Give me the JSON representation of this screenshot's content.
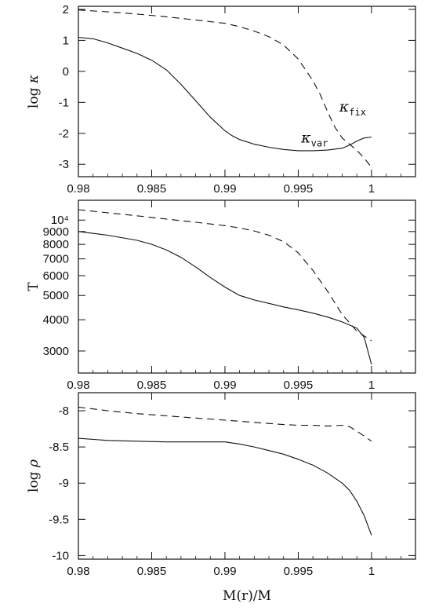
{
  "chart_data": [
    {
      "type": "line",
      "ylabel_symbol": "log ",
      "ylabel_var": "κ",
      "xlim": [
        0.98,
        1.003
      ],
      "ylim": [
        -3.4,
        2.1
      ],
      "x_ticks": [
        "0.98",
        "0.985",
        "0.99",
        "0.995",
        "1"
      ],
      "y_ticks": [
        "2",
        "1",
        "0",
        "-1",
        "-2",
        "-3"
      ],
      "y_tick_values": [
        2,
        1,
        0,
        -1,
        -2,
        -3
      ],
      "annotations": [
        {
          "symbol": "κ",
          "sub": "fix",
          "x": 0.9978,
          "y": -1.3
        },
        {
          "symbol": "κ",
          "sub": "var",
          "x": 0.9952,
          "y": -2.3
        }
      ],
      "series": [
        {
          "style": "dashed",
          "x": [
            0.98,
            0.982,
            0.984,
            0.986,
            0.988,
            0.99,
            0.991,
            0.992,
            0.993,
            0.994,
            0.995,
            0.996,
            0.9965,
            0.997,
            0.9975,
            0.998,
            0.9985,
            0.999,
            0.9995,
            1.0
          ],
          "y": [
            1.98,
            1.92,
            1.85,
            1.76,
            1.66,
            1.55,
            1.44,
            1.3,
            1.12,
            0.85,
            0.4,
            -0.3,
            -0.75,
            -1.3,
            -1.8,
            -2.15,
            -2.35,
            -2.55,
            -2.8,
            -3.1
          ]
        },
        {
          "style": "solid",
          "x": [
            0.98,
            0.981,
            0.982,
            0.983,
            0.984,
            0.985,
            0.986,
            0.987,
            0.988,
            0.989,
            0.99,
            0.9905,
            0.991,
            0.992,
            0.993,
            0.994,
            0.995,
            0.996,
            0.997,
            0.998,
            0.9985,
            0.999,
            0.9995,
            1.0
          ],
          "y": [
            1.1,
            1.05,
            0.92,
            0.75,
            0.58,
            0.36,
            0.05,
            -0.42,
            -0.95,
            -1.48,
            -1.92,
            -2.08,
            -2.2,
            -2.35,
            -2.45,
            -2.52,
            -2.56,
            -2.56,
            -2.54,
            -2.48,
            -2.38,
            -2.25,
            -2.15,
            -2.12
          ]
        }
      ]
    },
    {
      "type": "line",
      "ylabel": "T",
      "ylog": true,
      "xlim": [
        0.98,
        1.003
      ],
      "ylim": [
        2450,
        12000
      ],
      "x_ticks": [
        "0.98",
        "0.985",
        "0.99",
        "0.995",
        "1"
      ],
      "y_ticks": [
        "10⁴",
        "9000",
        "8000",
        "7000",
        "6000",
        "5000",
        "4000",
        "3000"
      ],
      "y_tick_values": [
        10000,
        9000,
        8000,
        7000,
        6000,
        5000,
        4000,
        3000
      ],
      "series": [
        {
          "style": "dashed",
          "x": [
            0.98,
            0.982,
            0.984,
            0.986,
            0.988,
            0.99,
            0.991,
            0.992,
            0.993,
            0.994,
            0.995,
            0.996,
            0.997,
            0.998,
            0.999,
            1.0
          ],
          "y": [
            11000,
            10700,
            10400,
            10100,
            9800,
            9500,
            9300,
            9050,
            8700,
            8200,
            7400,
            6300,
            5200,
            4200,
            3600,
            3300
          ]
        },
        {
          "style": "solid",
          "x": [
            0.98,
            0.982,
            0.984,
            0.985,
            0.986,
            0.987,
            0.988,
            0.989,
            0.99,
            0.991,
            0.992,
            0.993,
            0.994,
            0.995,
            0.996,
            0.997,
            0.998,
            0.999,
            0.9995,
            1.0
          ],
          "y": [
            9000,
            8700,
            8300,
            8000,
            7600,
            7100,
            6500,
            5900,
            5400,
            5000,
            4800,
            4650,
            4500,
            4380,
            4250,
            4100,
            3920,
            3700,
            3400,
            2650
          ]
        }
      ]
    },
    {
      "type": "line",
      "ylabel_symbol": "log ",
      "ylabel_var": "ρ",
      "xlabel": "M(r)/M",
      "xlim": [
        0.98,
        1.003
      ],
      "ylim": [
        -10.05,
        -7.75
      ],
      "x_ticks": [
        "0.98",
        "0.985",
        "0.99",
        "0.995",
        "1"
      ],
      "y_ticks": [
        "-8",
        "-8.5",
        "-9",
        "-9.5",
        "-10"
      ],
      "y_tick_values": [
        -8,
        -8.5,
        -9,
        -9.5,
        -10
      ],
      "series": [
        {
          "style": "dashed",
          "x": [
            0.98,
            0.982,
            0.984,
            0.986,
            0.988,
            0.99,
            0.992,
            0.994,
            0.995,
            0.996,
            0.997,
            0.998,
            0.9985,
            0.999,
            0.9995,
            1.0
          ],
          "y": [
            -7.95,
            -8.0,
            -8.04,
            -8.07,
            -8.1,
            -8.13,
            -8.16,
            -8.19,
            -8.2,
            -8.2,
            -8.21,
            -8.2,
            -8.22,
            -8.28,
            -8.35,
            -8.42
          ]
        },
        {
          "style": "solid",
          "x": [
            0.98,
            0.982,
            0.984,
            0.986,
            0.988,
            0.99,
            0.991,
            0.992,
            0.993,
            0.994,
            0.995,
            0.996,
            0.997,
            0.998,
            0.9985,
            0.999,
            0.9995,
            1.0
          ],
          "y": [
            -8.38,
            -8.41,
            -8.42,
            -8.43,
            -8.43,
            -8.43,
            -8.46,
            -8.5,
            -8.55,
            -8.6,
            -8.67,
            -8.75,
            -8.86,
            -9.0,
            -9.1,
            -9.25,
            -9.45,
            -9.72
          ]
        }
      ]
    }
  ]
}
